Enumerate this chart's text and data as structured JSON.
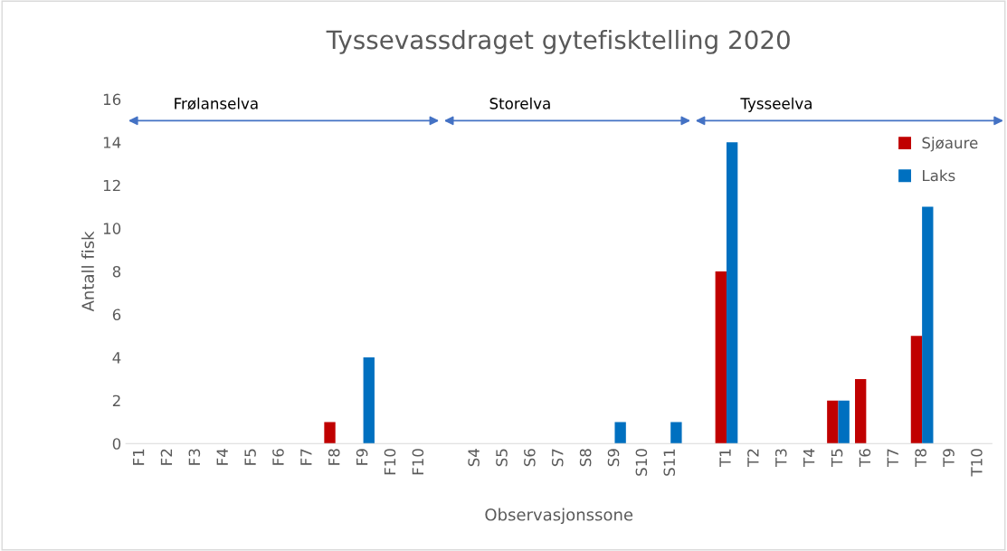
{
  "chart_data": {
    "type": "bar",
    "title": "Tyssevassdraget gytefisktelling 2020",
    "xlabel": "Observasjonssone",
    "ylabel": "Antall fisk",
    "categories": [
      "F1",
      "F2",
      "F3",
      "F4",
      "F5",
      "F6",
      "F7",
      "F8",
      "F9",
      "F10",
      "F10",
      null,
      "S4",
      "S5",
      "S6",
      "S7",
      "S8",
      "S9",
      "S10",
      "S11",
      null,
      "T1",
      "T2",
      "T3",
      "T4",
      "T5",
      "T6",
      "T7",
      "T8",
      "T9",
      "T10"
    ],
    "series": [
      {
        "name": "Sjøaure",
        "color": "#c00000",
        "values": [
          0,
          0,
          0,
          0,
          0,
          0,
          0,
          1,
          0,
          0,
          0,
          null,
          0,
          0,
          0,
          0,
          0,
          0,
          0,
          0,
          null,
          8,
          0,
          0,
          0,
          2,
          3,
          0,
          5,
          0,
          0
        ]
      },
      {
        "name": "Laks",
        "color": "#0070c0",
        "values": [
          0,
          0,
          0,
          0,
          0,
          0,
          0,
          0,
          4,
          0,
          0,
          null,
          0,
          0,
          0,
          0,
          0,
          1,
          0,
          1,
          null,
          14,
          0,
          0,
          0,
          2,
          0,
          0,
          11,
          0,
          0
        ]
      }
    ],
    "annotations": [
      "Frølanselva",
      "Storelva",
      "Tysseelva"
    ],
    "ylim": [
      0,
      16
    ],
    "yticks": [
      0,
      2,
      4,
      6,
      8,
      10,
      12,
      14,
      16
    ],
    "grid": false,
    "legend": "top right"
  }
}
